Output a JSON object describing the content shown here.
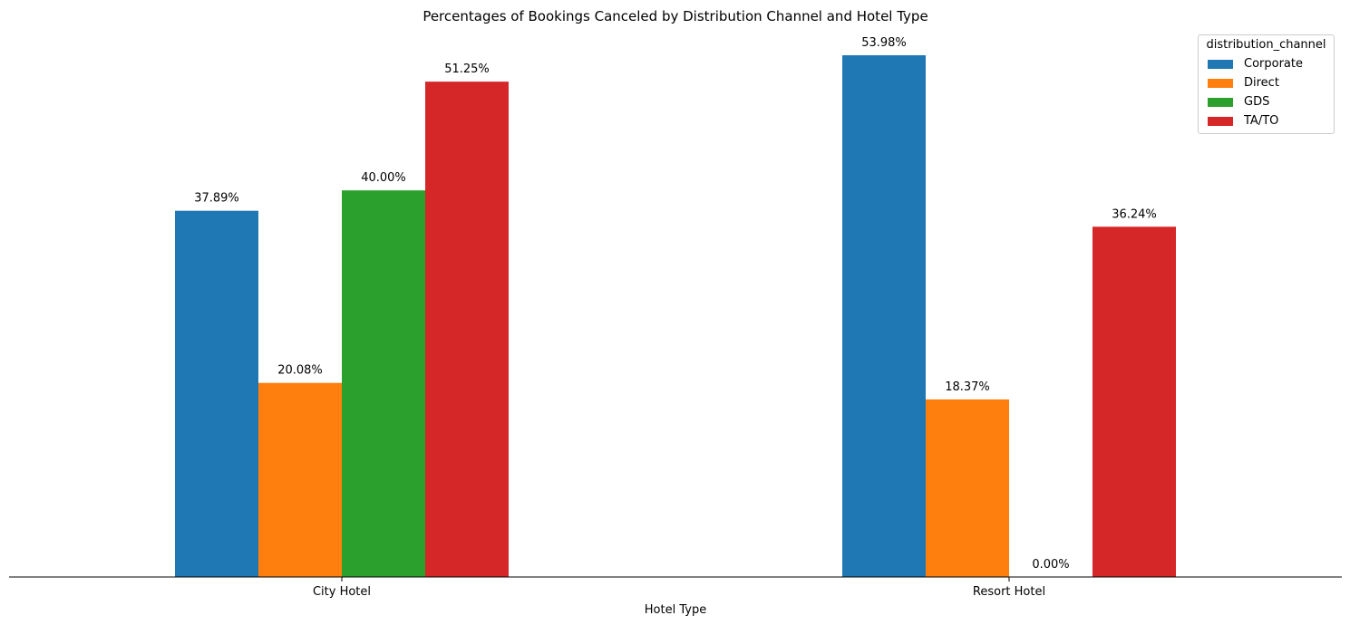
{
  "chart_data": {
    "type": "bar",
    "title": "Percentages of Bookings Canceled by Distribution Channel and Hotel Type",
    "xlabel": "Hotel Type",
    "ylabel": "",
    "categories": [
      "City Hotel",
      "Resort Hotel"
    ],
    "series": [
      {
        "name": "Corporate",
        "values": [
          37.89,
          53.98
        ],
        "labels": [
          "37.89%",
          "53.98%"
        ],
        "color": "#1f77b4"
      },
      {
        "name": "Direct",
        "values": [
          20.08,
          18.37
        ],
        "labels": [
          "20.08%",
          "18.37%"
        ],
        "color": "#ff7f0e"
      },
      {
        "name": "GDS",
        "values": [
          40.0,
          0.0
        ],
        "labels": [
          "40.00%",
          "0.00%"
        ],
        "color": "#2ca02c"
      },
      {
        "name": "TA/TO",
        "values": [
          51.25,
          36.24
        ],
        "labels": [
          "51.25%",
          "36.24%"
        ],
        "color": "#d62728"
      }
    ],
    "ylim": [
      0,
      56.7
    ],
    "legend_title": "distribution_channel",
    "legend_position": "top-right",
    "grid": false
  }
}
